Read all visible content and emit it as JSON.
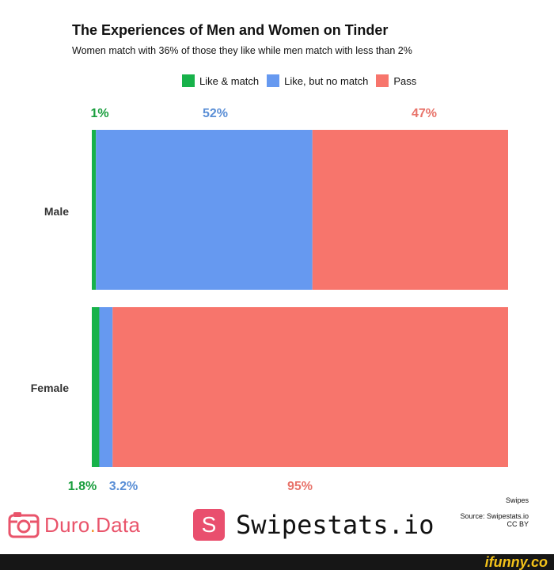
{
  "chart_data": {
    "type": "bar",
    "orientation": "horizontal",
    "stacked": true,
    "title": "The Experiences of Men and Women on Tinder",
    "subtitle": "Women match with 36% of those they like while men match with less than 2%",
    "categories": [
      "Male",
      "Female"
    ],
    "series": [
      {
        "name": "Like & match",
        "color": "#17b24a",
        "label_color": "#1a9e3e",
        "values": [
          1,
          1.8
        ],
        "labels": [
          "1%",
          "1.8%"
        ]
      },
      {
        "name": "Like, but no match",
        "color": "#6699f0",
        "label_color": "#5b8fd6",
        "values": [
          52,
          3.2
        ],
        "labels": [
          "52%",
          "3.2%"
        ]
      },
      {
        "name": "Pass",
        "color": "#f7756c",
        "label_color": "#e8736a",
        "values": [
          47,
          95
        ],
        "labels": [
          "47%",
          "95%"
        ]
      }
    ],
    "xlim": [
      0,
      100
    ],
    "grid": false,
    "legend": "top"
  },
  "footer": {
    "axis_note": "Swipes",
    "source": "Source: Swipestats.io",
    "license": "CC BY"
  },
  "brands": {
    "duro_main": "Duro",
    "duro_dot": ".",
    "duro_tail": "Data",
    "swipe_letter": "S",
    "swipe_name": "Swipestats.io"
  },
  "watermark": "ifunny.co"
}
